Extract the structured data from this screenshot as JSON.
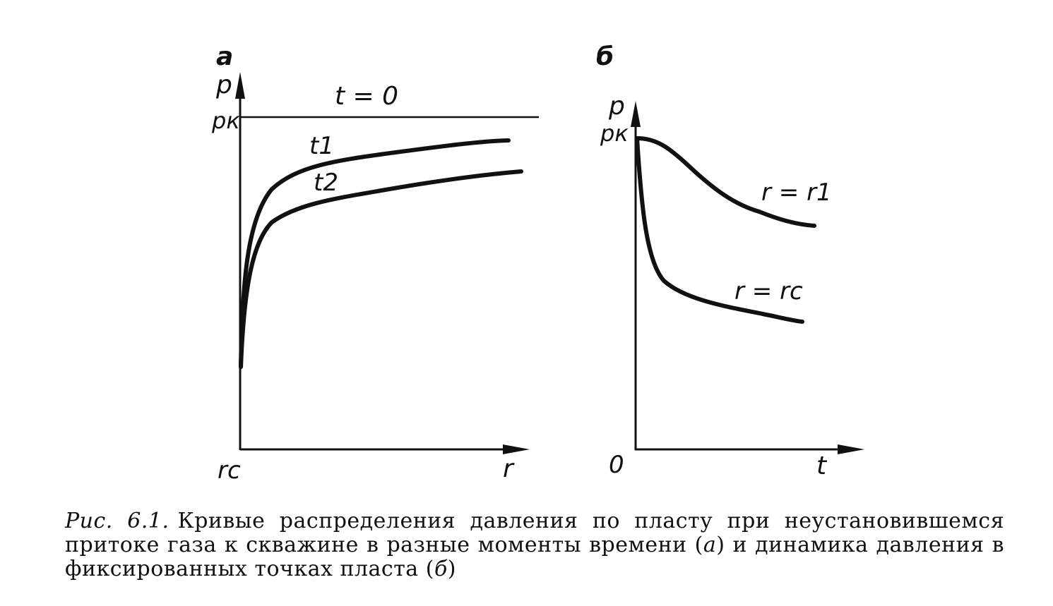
{
  "panel_a": {
    "label": "а",
    "y_axis_label": "p",
    "y_tick_label": "pк",
    "x_origin_label": "rс",
    "x_axis_label": "r",
    "curves": [
      {
        "label": "t = 0"
      },
      {
        "label": "t1"
      },
      {
        "label": "t2"
      }
    ]
  },
  "panel_b": {
    "label": "б",
    "y_axis_label": "p",
    "y_tick_label": "pк",
    "origin_label": "0",
    "x_axis_label": "t",
    "curves": [
      {
        "label": "r = r1"
      },
      {
        "label": "r = rс"
      }
    ]
  },
  "caption": {
    "figure_number": "Рис. 6.1.",
    "text_part1": "Кривые распределения давления по пласту при неустановившемся притоке газа к скважине в разные моменты времени (",
    "ref_a": "а",
    "text_part2": ") и динамика давления в фиксированных точках пласта (",
    "ref_b": "б",
    "text_part3": ")"
  }
}
